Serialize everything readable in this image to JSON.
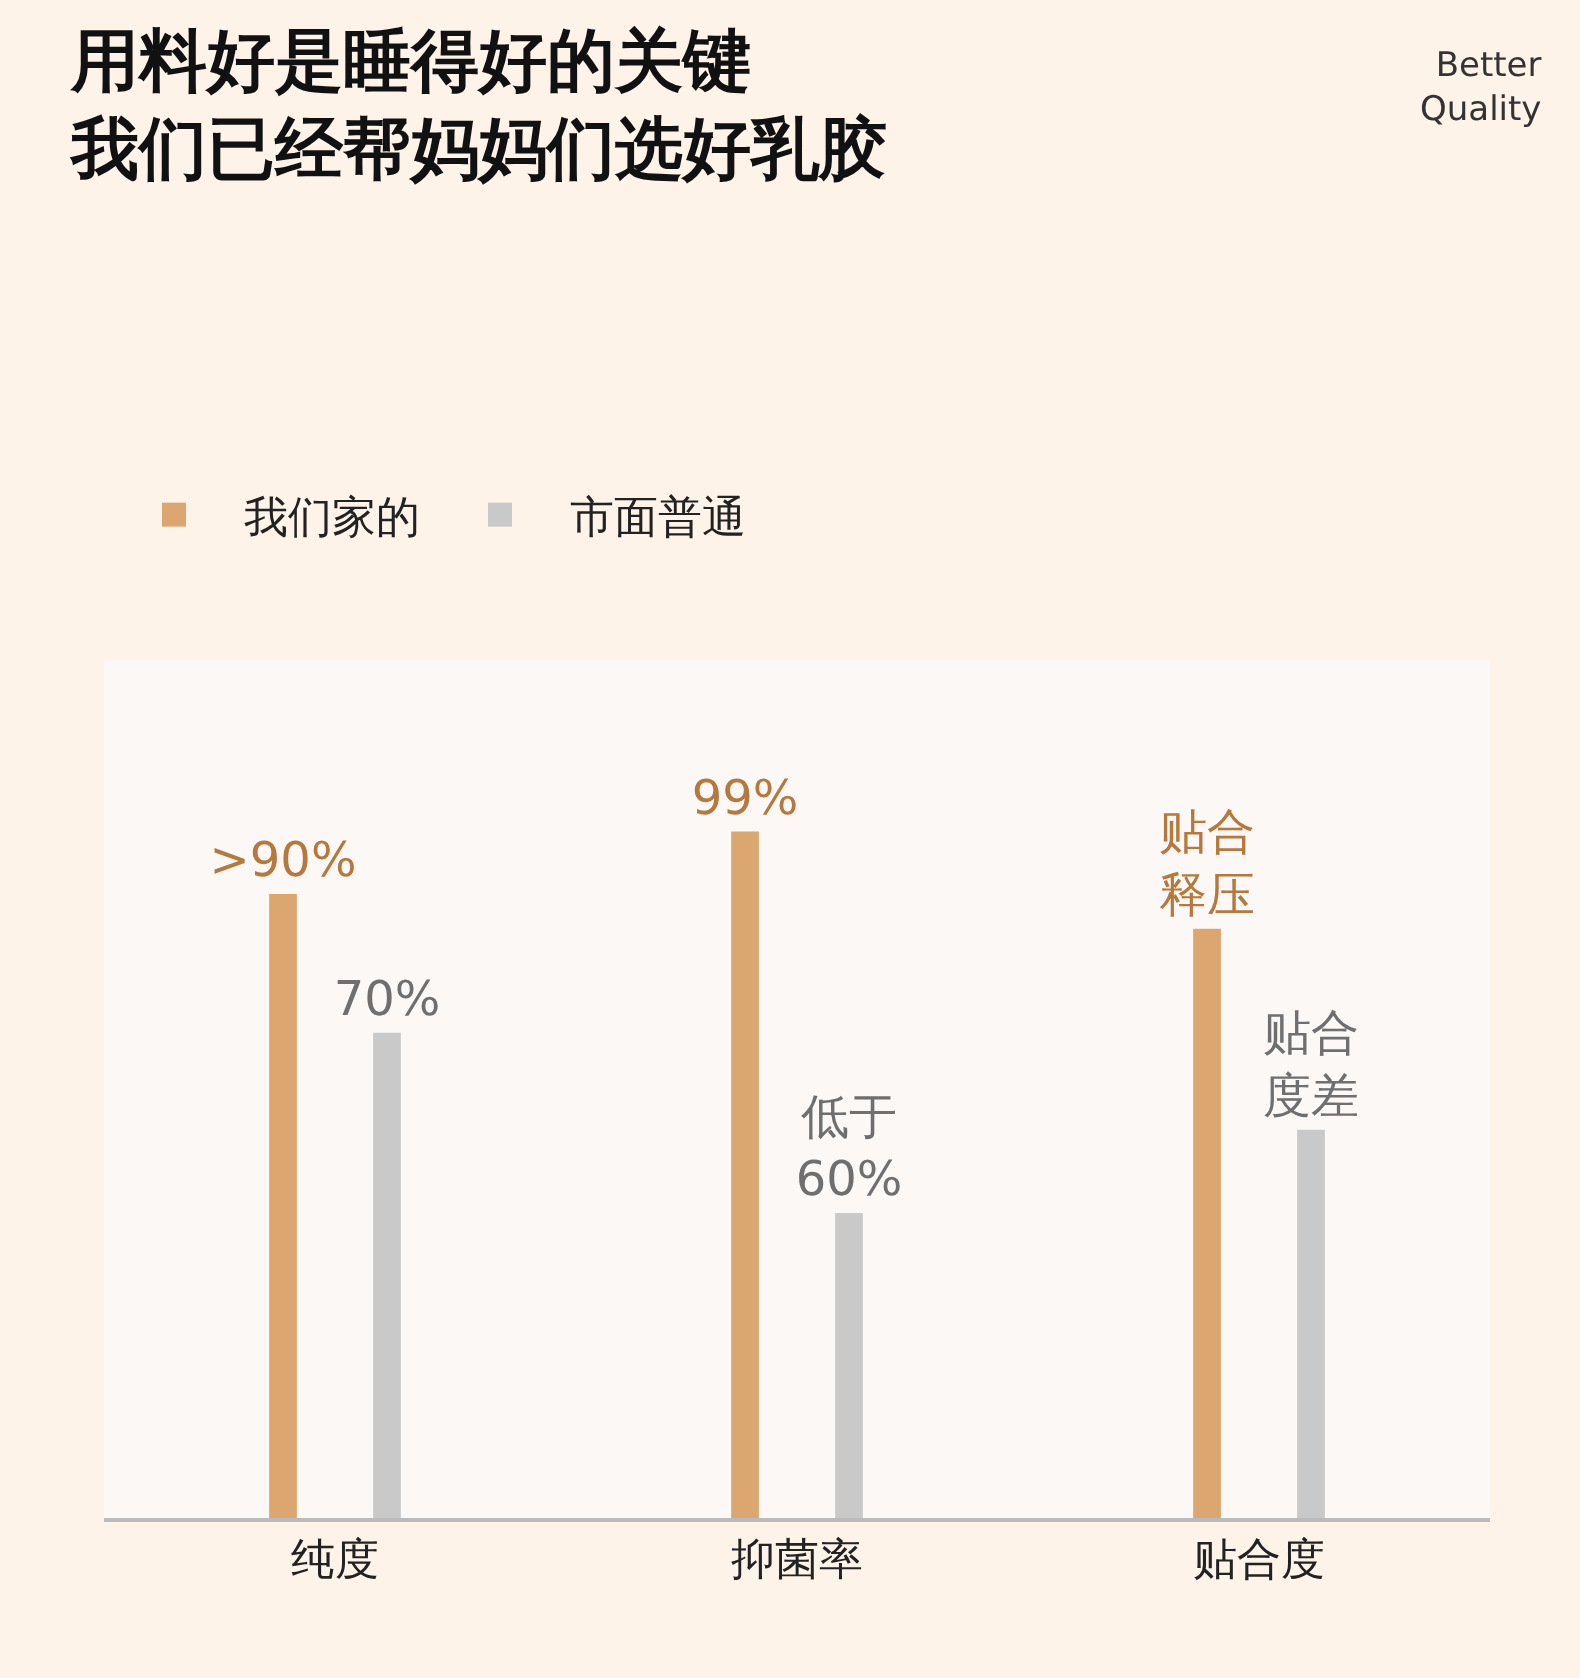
{
  "chart_data": {
    "type": "bar",
    "title": "用料好是睡得好的关键",
    "subtitle": "我们已经帮妈妈们选好乳胶",
    "categories": [
      "纯度",
      "抑菌率",
      "贴合度"
    ],
    "series": [
      {
        "name": "我们家的",
        "color": "#dba66f",
        "values": [
          90,
          99,
          85
        ],
        "value_labels": [
          ">90%",
          "99%",
          "贴合释压"
        ]
      },
      {
        "name": "市面普通",
        "color": "#c9c9c9",
        "values": [
          70,
          44,
          56
        ],
        "value_labels": [
          "70%",
          "低于60%",
          "贴合度差"
        ]
      }
    ],
    "annotations": [
      "Better\nQuality"
    ],
    "tick_labels": "x",
    "legend": "top left"
  }
}
